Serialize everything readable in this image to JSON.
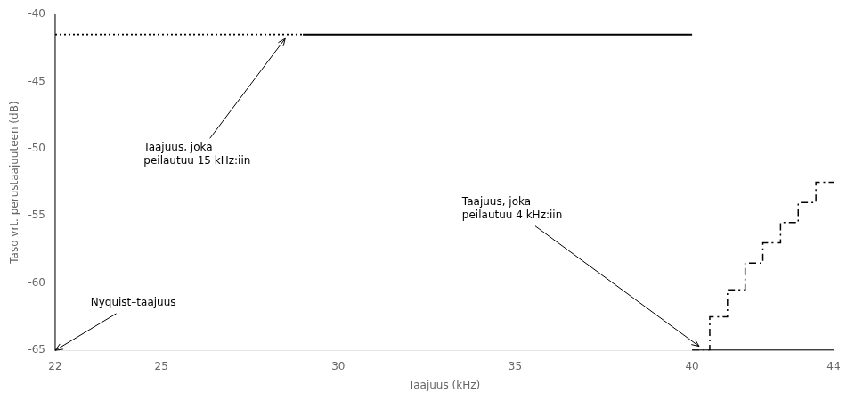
{
  "chart_data": {
    "type": "line",
    "xlabel": "Taajuus (kHz)",
    "ylabel": "Taso vrt. perustaajuuteen (dB)",
    "xlim": [
      22,
      44
    ],
    "ylim": [
      -65,
      -40
    ],
    "xticks": [
      22,
      25,
      30,
      35,
      40,
      44
    ],
    "yticks": [
      -40,
      -45,
      -50,
      -55,
      -60,
      -65
    ],
    "grid": false,
    "color": "black",
    "series": [
      {
        "x": [
          22,
          29.0
        ],
        "values": [
          -41.5,
          -41.5
        ],
        "line_style": "dotted"
      },
      {
        "x": [
          29.0,
          40.0
        ],
        "values": [
          -41.5,
          -41.5
        ],
        "line_style": "solid"
      },
      {
        "x": [
          40.0,
          44.0
        ],
        "values": [
          -65.0,
          -65.0
        ],
        "line_style": "solid"
      },
      {
        "x": [
          40.0,
          40.5,
          40.5,
          41.0,
          41.0,
          41.5,
          41.5,
          42.0,
          42.0,
          42.5,
          42.5,
          43.0,
          43.0,
          43.5,
          43.5,
          44.0
        ],
        "values": [
          -65.0,
          -65.0,
          -62.5,
          -62.5,
          -60.5,
          -60.5,
          -58.5,
          -58.5,
          -57.0,
          -57.0,
          -55.5,
          -55.5,
          -54.0,
          -54.0,
          -52.5,
          -52.5
        ],
        "line_style": "dashdot"
      }
    ],
    "vlines": [
      {
        "x": 22.0,
        "line_style": "solid"
      }
    ],
    "annotations": [
      {
        "text": "Taajuus, joka\npeilautuu 15 kHz:iin",
        "x": 24.5,
        "y": -49.5,
        "arrow_x": 28.5,
        "arrow_y": -41.8
      },
      {
        "text": "Taajuus, joka\npeilautuu 4 kHz:iin",
        "x": 33.5,
        "y": -53.5,
        "arrow_x": 40.2,
        "arrow_y": -64.7
      },
      {
        "text": "Nyquist–taajuus",
        "x": 23.0,
        "y": -61.5,
        "arrow_x": 22.0,
        "arrow_y": -65.0
      }
    ]
  }
}
